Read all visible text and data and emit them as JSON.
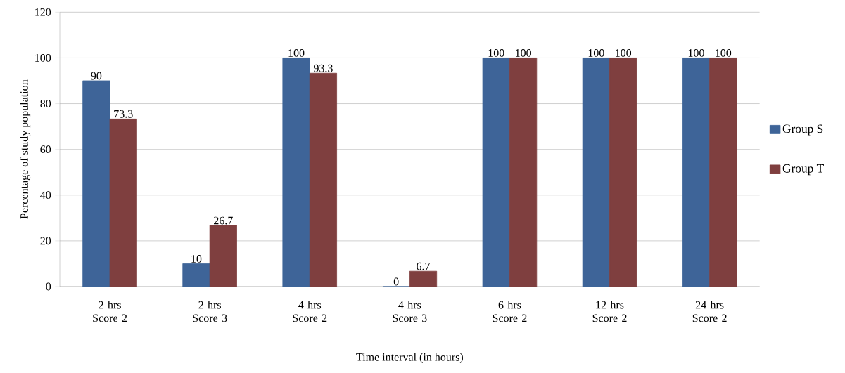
{
  "chart_data": {
    "type": "bar",
    "xlabel": "Time interval (in hours)",
    "ylabel": "Percentage of study population",
    "categories": [
      "2 hrs Score 2",
      "2 hrs Score 3",
      "4 hrs Score 2",
      "4 hrs Score 3",
      "6 hrs Score 2",
      "12 hrs Score 2",
      "24 hrs Score 2"
    ],
    "series": [
      {
        "name": "Group S",
        "color": "#3e6498",
        "values": [
          90,
          10,
          100,
          0,
          100,
          100,
          100
        ]
      },
      {
        "name": "Group T",
        "color": "#7f3f3f",
        "values": [
          73.3,
          26.7,
          93.3,
          6.7,
          100,
          100,
          100
        ]
      }
    ],
    "ylim": [
      0,
      120
    ],
    "yticks": [
      0,
      20,
      40,
      60,
      80,
      100,
      120
    ],
    "grid": "y",
    "legend": "right",
    "data_labels": true
  }
}
